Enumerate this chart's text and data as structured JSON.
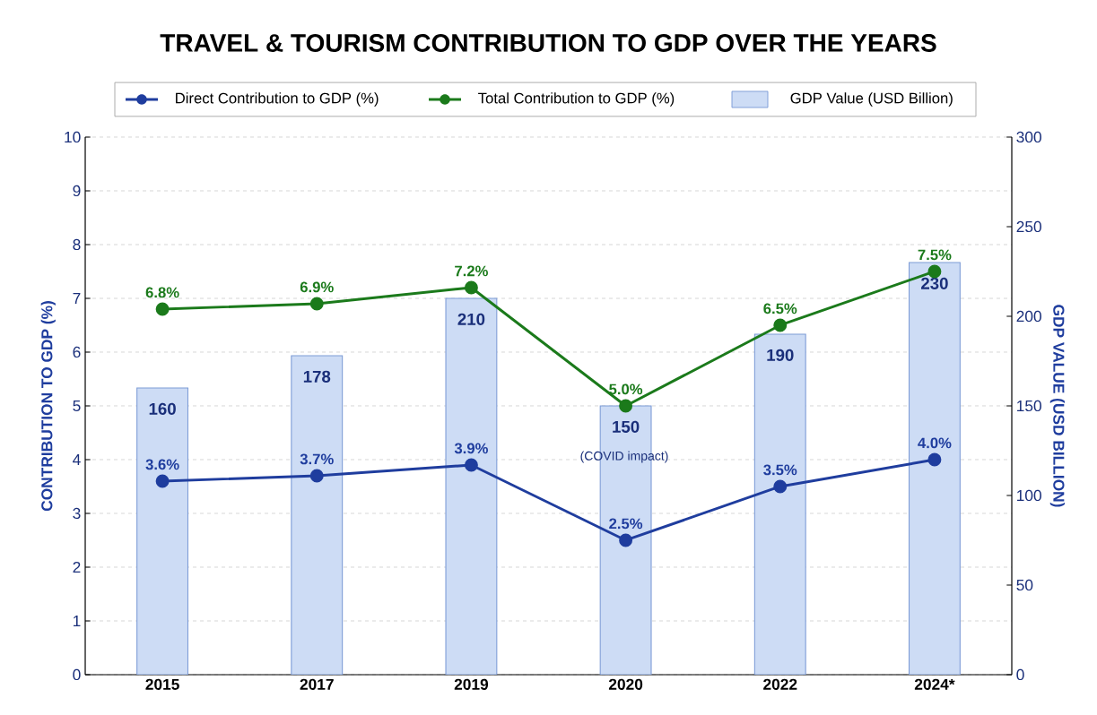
{
  "chart_data": {
    "type": "line",
    "title": "TRAVEL & TOURISM CONTRIBUTION TO GDP OVER THE YEARS",
    "ylabel": "CONTRIBUTION TO GDP (%)",
    "y2label": "GDP VALUE (USD BILLION)",
    "categories": [
      "2015",
      "2017",
      "2019",
      "2020",
      "2022",
      "2024*"
    ],
    "series": [
      {
        "name": "Direct Contribution to GDP (%)",
        "color": "#1f3d9e",
        "values": [
          3.6,
          3.7,
          3.9,
          2.5,
          3.5,
          4.0
        ],
        "value_labels": [
          "3.6%",
          "3.7%",
          "3.9%",
          "2.5%",
          "3.5%",
          "4.0%"
        ]
      },
      {
        "name": "Total Contribution to GDP (%)",
        "color": "#1b7a1b",
        "values": [
          6.8,
          6.9,
          7.2,
          5.0,
          6.5,
          7.5
        ],
        "value_labels": [
          "6.8%",
          "6.9%",
          "7.2%",
          "5.0%",
          "6.5%",
          "7.5%"
        ]
      },
      {
        "name": "GDP Value (USD Billion)",
        "type": "bar",
        "axis": "y2",
        "color": "#cddcf5",
        "values": [
          160,
          178,
          210,
          150,
          190,
          230
        ],
        "value_labels": [
          "160",
          "178",
          "210",
          "150",
          "190",
          "230"
        ]
      }
    ],
    "annotations": [
      "(COVID impact)"
    ],
    "ylim": [
      0,
      10
    ],
    "yticks": [
      0,
      1,
      2,
      3,
      4,
      5,
      6,
      7,
      8,
      9,
      10
    ],
    "y2lim": [
      0,
      300
    ],
    "y2ticks": [
      0,
      50,
      100,
      150,
      200,
      250,
      300
    ],
    "grid": "y",
    "legend": "top",
    "marker": "circle"
  }
}
